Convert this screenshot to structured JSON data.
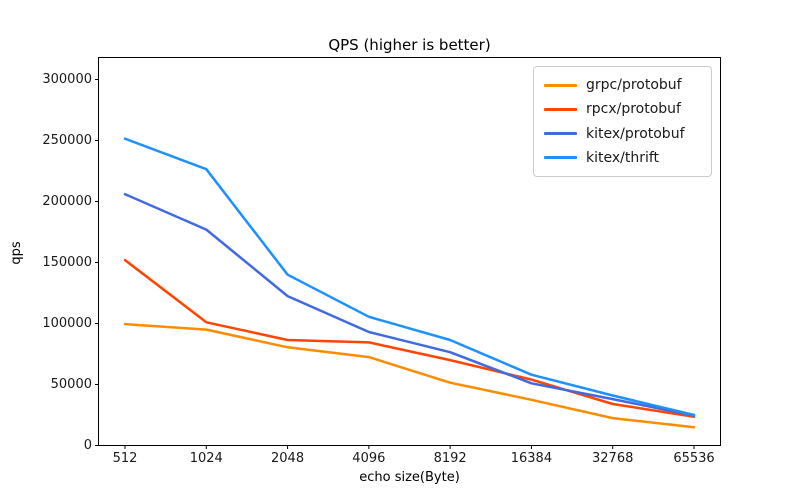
{
  "chart_data": {
    "type": "line",
    "title": "QPS (higher is better)",
    "xlabel": "echo size(Byte)",
    "ylabel": "qps",
    "categories": [
      "512",
      "1024",
      "2048",
      "4096",
      "8192",
      "16384",
      "32768",
      "65536"
    ],
    "yticks": [
      0,
      50000,
      100000,
      150000,
      200000,
      250000,
      300000
    ],
    "ylim": [
      0,
      318000
    ],
    "grid": false,
    "legend_position": "upper right",
    "axis_color": "#000000",
    "series": [
      {
        "name": "grpc/protobuf",
        "color": "#ff8c00",
        "values": [
          99500,
          95000,
          80500,
          72500,
          51500,
          37500,
          22500,
          15000
        ]
      },
      {
        "name": "rpcx/protobuf",
        "color": "#ff4500",
        "values": [
          152000,
          101000,
          86500,
          84500,
          70000,
          54000,
          34000,
          23500
        ]
      },
      {
        "name": "kitex/protobuf",
        "color": "#4169e1",
        "values": [
          206000,
          177000,
          122500,
          93000,
          76500,
          51000,
          38000,
          24500
        ]
      },
      {
        "name": "kitex/thrift",
        "color": "#1e90ff",
        "values": [
          251500,
          226500,
          140000,
          105500,
          86500,
          58000,
          41000,
          25000
        ]
      }
    ]
  }
}
